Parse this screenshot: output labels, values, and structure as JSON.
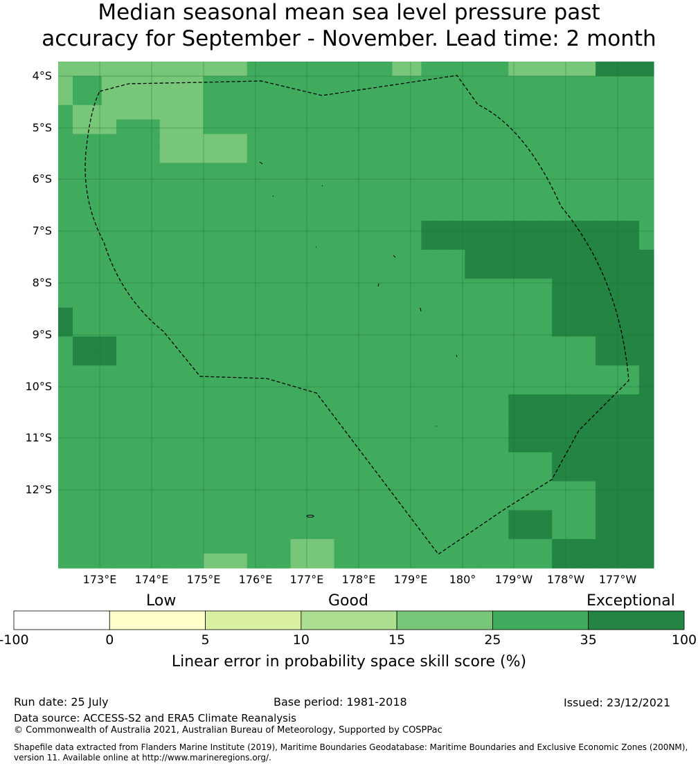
{
  "title": {
    "line1": "Median seasonal mean sea level pressure past",
    "line2": "accuracy for September - November. Lead time: 2 month"
  },
  "map": {
    "lat_labels": [
      "4°S",
      "5°S",
      "6°S",
      "7°S",
      "8°S",
      "9°S",
      "10°S",
      "11°S",
      "12°S"
    ],
    "lon_labels": [
      "173°E",
      "174°E",
      "175°E",
      "176°E",
      "177°E",
      "178°E",
      "179°E",
      "180°",
      "179°W",
      "178°W",
      "177°W"
    ],
    "category_colors": {
      "0": "#ffffcc",
      "1": "#d9f0a3",
      "2": "#addd8e",
      "3": "#78c679",
      "4": "#41ab5d",
      "5": "#238443"
    },
    "grid_rows": [
      "33333344444444444444444334444444444444443",
      "34434444444444444444444444444444444444444",
      "34434444444444444444444444444444444444444",
      "43333333334444444444444444444444444444444",
      "43344444334444444444444444444444444444444",
      "44444444444444444444444444444444444444444",
      "44444444444444444444444444444444444444444",
      "44444444444444444444444444444444444444444",
      "44444444444444444444444444444444444444444",
      "44444444444444444444444444444444444444444",
      "44444444444444444444444444444444444444444",
      "44444444444444444444444444444444444444444",
      "44444444444444444444444444444444444444444",
      "44444444444444444444444444444444444444444",
      "44444444444444444444444444444444444444444",
      "44444444444444444444444444444444444444444",
      "44444444444444444444444444444444444444444",
      "44444444444444444444444444444444444444444",
      "44444444444444444444444444444444444444444",
      "44444444444444444444444444444444444444444",
      "44444444444444444444444444444444444444444",
      "44444444444444444444444444444444444444444",
      "44444444444444444444444444444444444444444",
      "44444444444444444444444444444444444444444",
      "44444444444444444444444444444444444444444",
      "44444444444444444444444444444444444444444",
      "44444444444444444444444444444444444444444",
      "44444444444444444444444444444444444444444",
      "44444444444444444444444444444444444444444",
      "44444444444444444444444444444444444444444",
      "44444444444444444444444444444444444444444",
      "44444444444444444444444444444444444444444",
      "44444444444444444444444444444444444444444",
      "44444444444444444444444444444444444444444",
      "44444444444444444444444444444444444444444"
    ],
    "overrides": [
      {
        "r0": 0,
        "r1": 1,
        "c0": 1,
        "c1": 8,
        "cat": 3
      },
      {
        "r0": 0,
        "r1": 1,
        "c0": 8,
        "c1": 13,
        "cat": 3
      },
      {
        "r0": 0,
        "r1": 1,
        "c0": 31,
        "c1": 37,
        "cat": 3
      },
      {
        "r0": 0,
        "r1": 1,
        "c0": 39,
        "c1": 41,
        "cat": 5
      },
      {
        "r0": 0,
        "r1": 1,
        "c0": 37,
        "c1": 39,
        "cat": 5
      },
      {
        "r0": 0,
        "r1": 3,
        "c0": 0,
        "c1": 1,
        "cat": 3
      },
      {
        "r0": 1,
        "r1": 3,
        "c0": 4,
        "c1": 7,
        "cat": 3
      },
      {
        "r0": 1,
        "r1": 3,
        "c0": 7,
        "c1": 10,
        "cat": 3
      },
      {
        "r0": 3,
        "r1": 5,
        "c0": 1,
        "c1": 4,
        "cat": 3
      },
      {
        "r0": 3,
        "r1": 5,
        "c0": 7,
        "c1": 10,
        "cat": 3
      },
      {
        "r0": 5,
        "r1": 7,
        "c0": 7,
        "c1": 13,
        "cat": 3
      },
      {
        "r0": 11,
        "r1": 13,
        "c0": 25,
        "c1": 40,
        "cat": 5
      },
      {
        "r0": 13,
        "r1": 15,
        "c0": 28,
        "c1": 41,
        "cat": 5
      },
      {
        "r0": 15,
        "r1": 19,
        "c0": 34,
        "c1": 41,
        "cat": 5
      },
      {
        "r0": 17,
        "r1": 19,
        "c0": 0,
        "c1": 1,
        "cat": 5
      },
      {
        "r0": 19,
        "r1": 21,
        "c0": 1,
        "c1": 4,
        "cat": 5
      },
      {
        "r0": 19,
        "r1": 21,
        "c0": 37,
        "c1": 41,
        "cat": 5
      },
      {
        "r0": 21,
        "r1": 23,
        "c0": 40,
        "c1": 41,
        "cat": 5
      },
      {
        "r0": 23,
        "r1": 27,
        "c0": 31,
        "c1": 41,
        "cat": 5
      },
      {
        "r0": 27,
        "r1": 29,
        "c0": 34,
        "c1": 41,
        "cat": 5
      },
      {
        "r0": 29,
        "r1": 31,
        "c0": 37,
        "c1": 41,
        "cat": 5
      },
      {
        "r0": 31,
        "r1": 33,
        "c0": 31,
        "c1": 34,
        "cat": 5
      },
      {
        "r0": 31,
        "r1": 33,
        "c0": 37,
        "c1": 41,
        "cat": 5
      },
      {
        "r0": 33,
        "r1": 35,
        "c0": 34,
        "c1": 41,
        "cat": 5
      },
      {
        "r0": 33,
        "r1": 35,
        "c0": 16,
        "c1": 19,
        "cat": 3
      },
      {
        "r0": 34,
        "r1": 35,
        "c0": 10,
        "c1": 13,
        "cat": 3
      }
    ],
    "grid_line_color": "#1d6e35",
    "boundary_color": "#000000"
  },
  "legend": {
    "categories": [
      "Low",
      "Good",
      "Exceptional"
    ],
    "ticks": [
      "-100",
      "0",
      "5",
      "10",
      "15",
      "25",
      "35",
      "100"
    ],
    "colors": [
      "#ffffff",
      "#ffffcc",
      "#d9f0a3",
      "#addd8e",
      "#78c679",
      "#41ab5d",
      "#238443"
    ],
    "title": "Linear error in probability space skill score (%)"
  },
  "footer": {
    "run_date": "Run date: 25 July",
    "base_period": "Base period: 1981-2018",
    "issued": "Issued: 23/12/2021",
    "data_source": "Data source: ACCESS-S2 and ERA5 Climate Reanalysis",
    "copyright": "© Commonwealth of Australia 2021, Australian Bureau of Meteorology, Supported by COSPPac",
    "shapefile": "Shapefile data extracted from Flanders Marine Institute (2019), Maritime Boundaries Geodatabase: Maritime Boundaries and Exclusive Economic Zones (200NM), version 11. Available online at http://www.marineregions.org/."
  }
}
